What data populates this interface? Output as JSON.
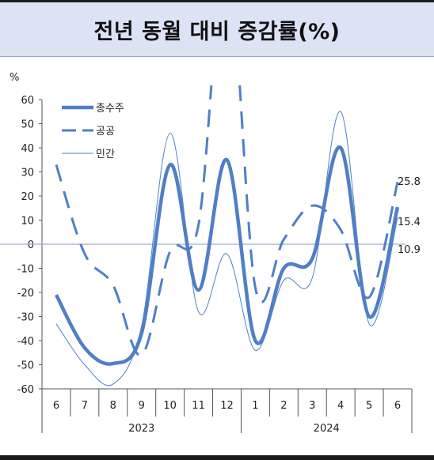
{
  "header": {
    "title": "전년 동월 대비 증감률(%)"
  },
  "chart_data": {
    "type": "line",
    "title": "전년 동월 대비 증감률(%)",
    "y_unit": "%",
    "ylim": [
      -60,
      60
    ],
    "y_ticks": [
      "60",
      "50",
      "40",
      "30",
      "20",
      "10",
      "0",
      "-10",
      "-20",
      "-30",
      "-40",
      "-50",
      "-60"
    ],
    "categories": [
      "6",
      "7",
      "8",
      "9",
      "10",
      "11",
      "12",
      "1",
      "2",
      "3",
      "4",
      "5",
      "6"
    ],
    "year_groups": [
      {
        "label": "2023",
        "start": 0,
        "end": 6
      },
      {
        "label": "2024",
        "start": 7,
        "end": 12
      }
    ],
    "legend_position": "top-left",
    "series": [
      {
        "name": "총수주",
        "values": [
          -21,
          -43,
          -49.5,
          -37,
          33,
          -19,
          35,
          -40,
          -10,
          -6,
          40,
          -30,
          15.4
        ],
        "style": "solid-thick"
      },
      {
        "name": "공공",
        "values": [
          33,
          -4,
          -17,
          -46,
          -3,
          8,
          120,
          -18,
          2,
          16,
          6,
          -22,
          25.8
        ],
        "style": "dashed"
      },
      {
        "name": "민간",
        "values": [
          -33,
          -50,
          -58,
          -34,
          46,
          -28,
          -4,
          -44,
          -15,
          -14,
          55,
          -33,
          10.9
        ],
        "style": "solid-thin"
      }
    ],
    "end_labels": [
      "25.8",
      "15.4",
      "10.9"
    ],
    "colors": {
      "line": "#4f7fc6",
      "zero_line": "#9aaed0",
      "header_bg": "#dbe3f5"
    }
  }
}
